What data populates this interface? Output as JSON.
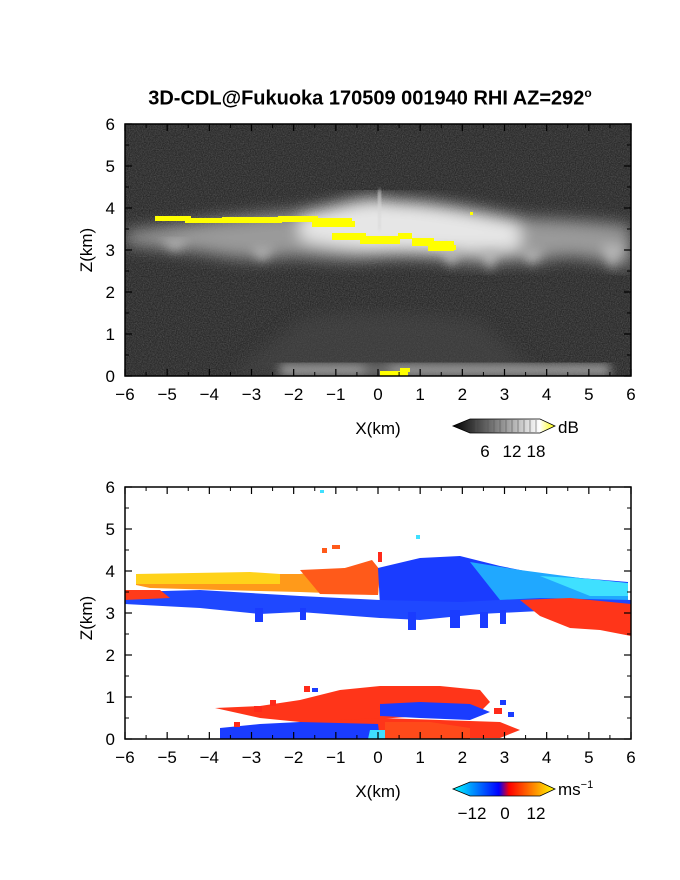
{
  "title": {
    "text": "3D-CDL@Fukuoka 170509 001940 RHI AZ=292",
    "degree_symbol": "o"
  },
  "chart_data": [
    {
      "type": "heatmap",
      "name": "backscatter-intensity",
      "xlabel": "X(km)",
      "ylabel": "Z(km)",
      "xlim": [
        -6,
        6
      ],
      "ylim": [
        0,
        6
      ],
      "xticks": [
        "−6",
        "−5",
        "−4",
        "−3",
        "−2",
        "−1",
        "0",
        "1",
        "2",
        "3",
        "4",
        "5",
        "6"
      ],
      "yticks": [
        "0",
        "1",
        "2",
        "3",
        "4",
        "5",
        "6"
      ],
      "colorbar": {
        "unit": "dB",
        "ticks": [
          "6",
          "12",
          "18"
        ],
        "range": [
          0,
          20
        ],
        "colors": [
          "#000000",
          "#ffffff",
          "#ffff00"
        ]
      },
      "features": [
        {
          "label": "background",
          "x": [
            -6,
            6
          ],
          "z": [
            0,
            6
          ],
          "level": 2
        },
        {
          "label": "cloud-layer",
          "x": [
            -6,
            6
          ],
          "z": [
            2.7,
            3.9
          ],
          "level": 12
        },
        {
          "label": "bright-streak",
          "x": [
            -5.5,
            -0.6
          ],
          "z": [
            3.55,
            3.75
          ],
          "level": 20
        },
        {
          "label": "bright-streak",
          "x": [
            -1.0,
            0.8
          ],
          "z": [
            3.1,
            3.35
          ],
          "level": 20
        },
        {
          "label": "bright-streak",
          "x": [
            0.9,
            1.9
          ],
          "z": [
            3.0,
            3.3
          ],
          "level": 20
        },
        {
          "label": "boundary-layer",
          "x": [
            -1.5,
            3.0
          ],
          "z": [
            0,
            1.2
          ],
          "level": 5
        },
        {
          "label": "near-ground",
          "x": [
            -4,
            6
          ],
          "z": [
            0,
            0.15
          ],
          "level": 14
        }
      ]
    },
    {
      "type": "heatmap",
      "name": "doppler-velocity",
      "xlabel": "X(km)",
      "ylabel": "Z(km)",
      "xlim": [
        -6,
        6
      ],
      "ylim": [
        0,
        6
      ],
      "xticks": [
        "−6",
        "−5",
        "−4",
        "−3",
        "−2",
        "−1",
        "0",
        "1",
        "2",
        "3",
        "4",
        "5",
        "6"
      ],
      "yticks": [
        "0",
        "1",
        "2",
        "3",
        "4",
        "5",
        "6"
      ],
      "colorbar": {
        "unit": "ms",
        "unit_exponent": "−1",
        "ticks": [
          "−12",
          "0",
          "12"
        ],
        "range": [
          -15,
          15
        ],
        "colors": [
          "#00ffff",
          "#0000ff",
          "#ff0000",
          "#ffff00"
        ]
      },
      "features": [
        {
          "label": "upper-layer",
          "x": [
            -6,
            -1.0
          ],
          "z": [
            3.5,
            3.85
          ],
          "velocity": 12
        },
        {
          "label": "upper-layer",
          "x": [
            -1.0,
            0.2
          ],
          "z": [
            3.4,
            3.9
          ],
          "velocity": 4
        },
        {
          "label": "upper-layer",
          "x": [
            0.2,
            2.5
          ],
          "z": [
            3.4,
            4.1
          ],
          "velocity": -8
        },
        {
          "label": "upper-layer",
          "x": [
            2.5,
            6.0
          ],
          "z": [
            3.4,
            4.0
          ],
          "velocity": -13
        },
        {
          "label": "lower-band",
          "x": [
            -6,
            3.0
          ],
          "z": [
            3.0,
            3.4
          ],
          "velocity": -6
        },
        {
          "label": "lower-band",
          "x": [
            3.0,
            6.0
          ],
          "z": [
            2.6,
            3.4
          ],
          "velocity": 3
        },
        {
          "label": "boundary-layer",
          "x": [
            -2.3,
            2.8
          ],
          "z": [
            0.5,
            1.2
          ],
          "velocity": 3
        },
        {
          "label": "boundary-layer",
          "x": [
            0.0,
            2.0
          ],
          "z": [
            0.4,
            0.8
          ],
          "velocity": -6
        },
        {
          "label": "boundary-layer",
          "x": [
            -3.5,
            0.0
          ],
          "z": [
            0.05,
            0.3
          ],
          "velocity": -7
        },
        {
          "label": "boundary-layer",
          "x": [
            0.0,
            3.0
          ],
          "z": [
            0.05,
            0.35
          ],
          "velocity": 4
        }
      ]
    }
  ]
}
